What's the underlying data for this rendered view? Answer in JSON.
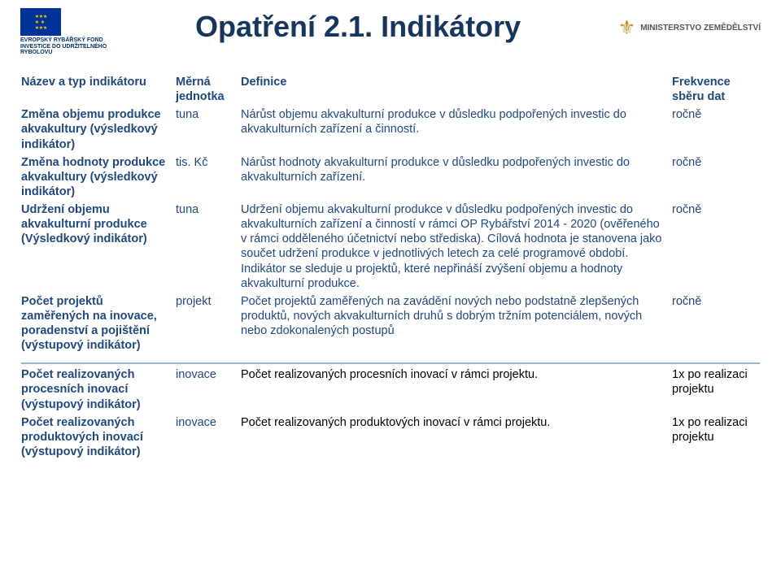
{
  "title": "Opatření 2.1. Indikátory",
  "header_left": {
    "line1": "EVROPSKÝ RYBÁŘSKÝ FOND",
    "line2": "INVESTICE DO UDRŽITELNÉHO",
    "line3": "RYBOLOVU"
  },
  "header_right": "MINISTERSTVO ZEMĚDĚLSTVÍ",
  "columns": {
    "name": "Název a typ indikátoru",
    "unit": "Měrná jednotka",
    "def": "Definice",
    "freq": "Frekvence sběru dat"
  },
  "rows": [
    {
      "name": "Změna objemu produkce akvakultury (výsledkový indikátor)",
      "unit": "tuna",
      "def": "Nárůst objemu akvakulturní produkce v důsledku podpořených investic do akvakulturních zařízení a činností.",
      "freq": "ročně"
    },
    {
      "name": "Změna hodnoty produkce akvakultury (výsledkový indikátor)",
      "unit": "tis. Kč",
      "def": "Nárůst hodnoty akvakulturní produkce v důsledku podpořených investic do akvakulturních zařízení.",
      "freq": "ročně"
    },
    {
      "name": "Udržení objemu akvakulturní produkce (Výsledkový indikátor)",
      "unit": "tuna",
      "def": "Udržení objemu akvakulturní produkce v důsledku podpořených investic do akvakulturních zařízení a činností v rámci OP Rybářství 2014 - 2020  (ověřeného v rámci odděleného účetnictví nebo střediska). Cílová hodnota je stanovena jako součet udržení produkce v jednotlivých letech za celé programové období. Indikátor se sleduje u projektů, které nepřináší zvýšení objemu a hodnoty akvakulturní produkce.",
      "freq": "ročně"
    },
    {
      "name": "Počet projektů zaměřených na inovace, poradenství a pojištění (výstupový indikátor)",
      "unit": "projekt",
      "def": "Počet projektů zaměřených na zavádění nových nebo podstatně zlepšených produktů, nových akvakulturních druhů s dobrým tržním potenciálem, nových nebo zdokonalených postupů",
      "freq": "ročně"
    }
  ],
  "rows2": [
    {
      "name": "Počet realizovaných procesních inovací (výstupový indikátor)",
      "unit": "inovace",
      "def": "Počet realizovaných procesních inovací v rámci projektu.",
      "freq": "1x po realizaci projektu"
    },
    {
      "name": "Počet realizovaných produktových inovací (výstupový indikátor)",
      "unit": "inovace",
      "def": "Počet realizovaných produktových inovací v rámci projektu.",
      "freq": "1x po realizaci projektu"
    }
  ],
  "colors": {
    "heading": "#17365d",
    "blue_text": "#1f497d",
    "rule": "#9db4d1",
    "eu_blue": "#003399",
    "eu_gold": "#ffcc00"
  }
}
